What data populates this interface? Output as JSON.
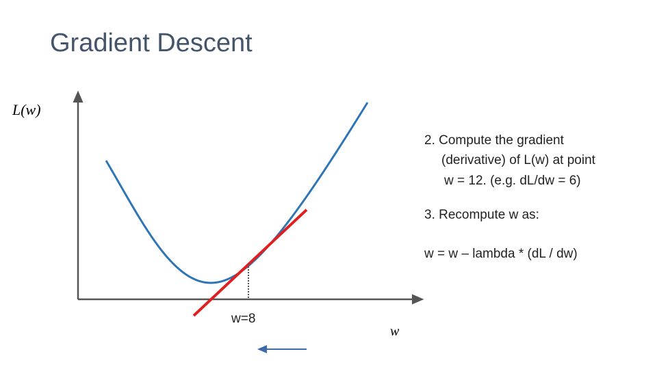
{
  "title": "Gradient Descent",
  "axes": {
    "y_label": "L(w)",
    "x_label": "w"
  },
  "point_label": "w=8",
  "steps": [
    {
      "lines": [
        "2. Compute the gradient",
        "(derivative) of L(w) at point",
        "w = 12. (e.g. dL/dw = 6)"
      ]
    },
    {
      "lines": [
        "3. Recompute w as:"
      ]
    },
    {
      "lines": [
        "w = w – lambda * (dL / dw)"
      ]
    }
  ]
}
